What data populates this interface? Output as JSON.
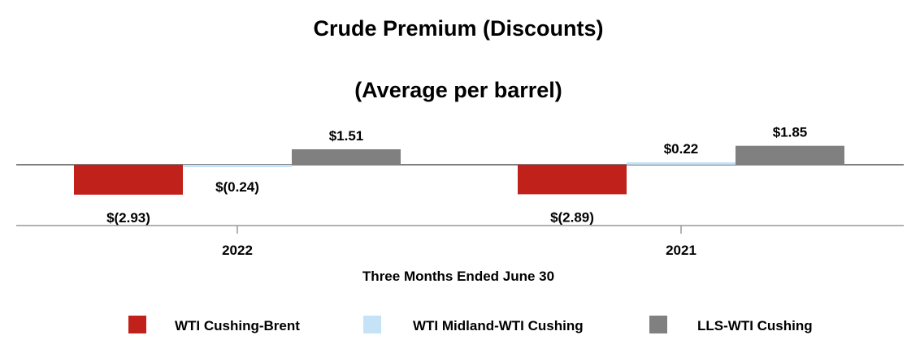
{
  "chart_data": {
    "type": "bar",
    "title": "Crude Premium (Discounts)",
    "subtitle": "(Average per barrel)",
    "xlabel": "Three Months Ended June 30",
    "ylabel": "",
    "categories": [
      "2022",
      "2021"
    ],
    "series": [
      {
        "name": "WTI Cushing-Brent",
        "color": "#c0211a",
        "values": [
          -2.93,
          -2.89
        ],
        "labels": [
          "$(2.93)",
          "$(2.89)"
        ]
      },
      {
        "name": "WTI Midland-WTI Cushing",
        "color": "#c5e3f7",
        "values": [
          -0.24,
          0.22
        ],
        "labels": [
          "$(0.24)",
          "$0.22"
        ]
      },
      {
        "name": "LLS-WTI Cushing",
        "color": "#808080",
        "values": [
          1.51,
          1.85
        ],
        "labels": [
          "$1.51",
          "$1.85"
        ]
      }
    ],
    "grid": false,
    "legend_position": "bottom"
  }
}
